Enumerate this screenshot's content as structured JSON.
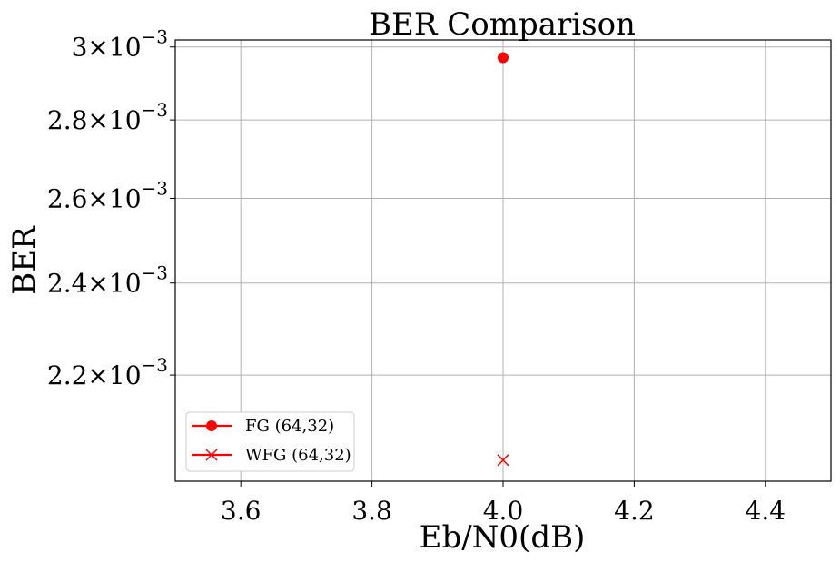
{
  "chart_data": {
    "type": "scatter",
    "title": "BER Comparison",
    "xlabel": "Eb/N0(dB)",
    "ylabel": "BER",
    "xlim": [
      3.5,
      4.5
    ],
    "ylim": [
      0.00199,
      0.00302
    ],
    "yscale": "log",
    "grid": true,
    "legend_placement": "lower-left",
    "x_ticks": [
      {
        "value": 3.6,
        "label": "3.6"
      },
      {
        "value": 3.8,
        "label": "3.8"
      },
      {
        "value": 4.0,
        "label": "4.0"
      },
      {
        "value": 4.2,
        "label": "4.2"
      },
      {
        "value": 4.4,
        "label": "4.4"
      }
    ],
    "y_ticks": [
      {
        "value": 0.0022,
        "mantissa": "2.2",
        "times": "×",
        "base": "10",
        "exponent": "−3"
      },
      {
        "value": 0.0024,
        "mantissa": "2.4",
        "times": "×",
        "base": "10",
        "exponent": "−3"
      },
      {
        "value": 0.0026,
        "mantissa": "2.6",
        "times": "×",
        "base": "10",
        "exponent": "−3"
      },
      {
        "value": 0.0028,
        "mantissa": "2.8",
        "times": "×",
        "base": "10",
        "exponent": "−3"
      },
      {
        "value": 0.003,
        "mantissa": "3",
        "times": "×",
        "base": "10",
        "exponent": "−3"
      }
    ],
    "series": [
      {
        "name": "FG (64,32)",
        "marker": "circle",
        "color": "#ff0000",
        "x": [
          4.0
        ],
        "y": [
          0.00297
        ]
      },
      {
        "name": "WFG (64,32)",
        "marker": "x",
        "color": "#ff0000",
        "x": [
          4.0
        ],
        "y": [
          0.00203
        ]
      }
    ]
  }
}
